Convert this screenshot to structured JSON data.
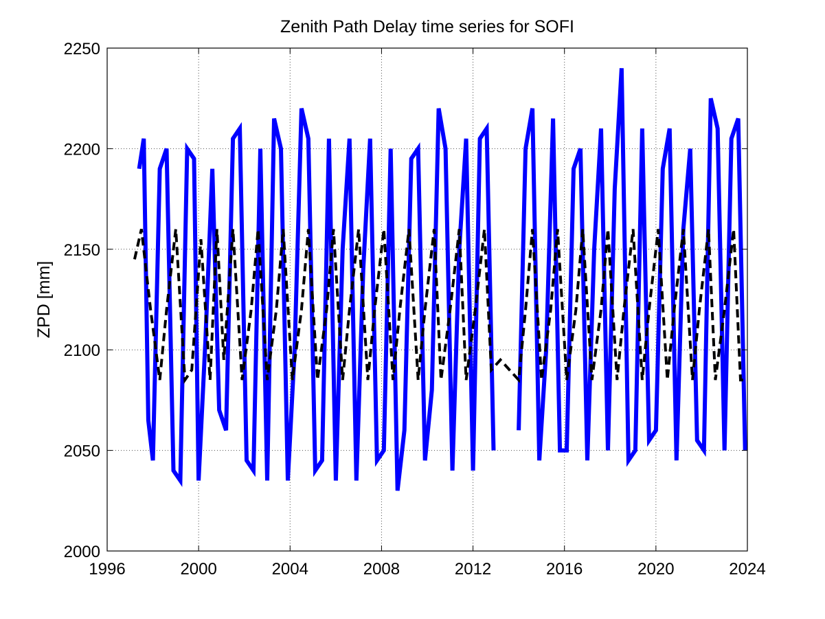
{
  "chart_data": {
    "type": "line",
    "title": "Zenith Path Delay time series for SOFI",
    "xlabel": "",
    "ylabel": "ZPD [mm]",
    "xlim": [
      1996,
      2024
    ],
    "ylim": [
      2000,
      2250
    ],
    "x_ticks": [
      "1996",
      "2000",
      "2004",
      "2008",
      "2012",
      "2016",
      "2020",
      "2024"
    ],
    "y_ticks": [
      "2000",
      "2050",
      "2100",
      "2150",
      "2200",
      "2250"
    ],
    "grid": true,
    "colors": {
      "observed": "#0000ff",
      "model": "#000000"
    },
    "series": [
      {
        "style": "solid-thick",
        "color": "#0000ff",
        "segments": [
          {
            "x": [
              1997.4,
              1997.6,
              1997.8,
              1998.0,
              1998.3,
              1998.6,
              1998.9,
              1999.2,
              1999.5,
              1999.8,
              2000.0,
              2000.3,
              2000.6,
              2000.9,
              2001.2,
              2001.5,
              2001.8,
              2002.1,
              2002.4,
              2002.7,
              2003.0,
              2003.3,
              2003.6,
              2003.9,
              2004.2,
              2004.5,
              2004.8,
              2005.1,
              2005.4,
              2005.7,
              2006.0,
              2006.3,
              2006.6,
              2006.9,
              2007.2,
              2007.5,
              2007.8,
              2008.1,
              2008.4,
              2008.7,
              2009.0,
              2009.3,
              2009.6,
              2009.9,
              2010.2,
              2010.5,
              2010.8,
              2011.1,
              2011.4,
              2011.7,
              2012.0,
              2012.3,
              2012.6,
              2012.9
            ],
            "y": [
              2190,
              2205,
              2065,
              2045,
              2190,
              2200,
              2040,
              2035,
              2200,
              2195,
              2035,
              2105,
              2190,
              2070,
              2060,
              2205,
              2210,
              2045,
              2040,
              2200,
              2035,
              2215,
              2200,
              2035,
              2100,
              2220,
              2205,
              2040,
              2045,
              2205,
              2035,
              2150,
              2205,
              2035,
              2140,
              2205,
              2045,
              2050,
              2200,
              2030,
              2060,
              2195,
              2200,
              2045,
              2080,
              2220,
              2200,
              2040,
              2150,
              2205,
              2040,
              2205,
              2210,
              2050
            ]
          },
          {
            "x": [
              2014.0,
              2014.3,
              2014.6,
              2014.9,
              2015.2,
              2015.5,
              2015.8,
              2016.1,
              2016.4,
              2016.7,
              2017.0,
              2017.3,
              2017.6,
              2017.9,
              2018.2,
              2018.5,
              2018.8,
              2019.1,
              2019.4,
              2019.7,
              2020.0,
              2020.3,
              2020.6,
              2020.9,
              2021.2,
              2021.5,
              2021.8,
              2022.1,
              2022.4,
              2022.7,
              2023.0,
              2023.3,
              2023.6,
              2023.9
            ],
            "y": [
              2060,
              2200,
              2220,
              2045,
              2100,
              2215,
              2050,
              2050,
              2190,
              2200,
              2045,
              2150,
              2210,
              2050,
              2180,
              2240,
              2045,
              2050,
              2210,
              2055,
              2060,
              2190,
              2210,
              2045,
              2160,
              2200,
              2055,
              2050,
              2225,
              2210,
              2050,
              2205,
              2215,
              2050
            ]
          }
        ]
      },
      {
        "style": "dashed",
        "color": "#000000",
        "x": [
          1997.2,
          1997.5,
          1997.9,
          1998.3,
          1998.6,
          1999.0,
          1999.4,
          1999.7,
          2000.1,
          2000.5,
          2000.8,
          2001.1,
          2001.5,
          2001.9,
          2002.3,
          2002.6,
          2003.0,
          2003.4,
          2003.7,
          2004.1,
          2004.5,
          2004.8,
          2005.2,
          2005.6,
          2005.9,
          2006.3,
          2006.6,
          2007.0,
          2007.4,
          2007.7,
          2008.1,
          2008.5,
          2008.8,
          2009.2,
          2009.6,
          2009.9,
          2010.3,
          2010.6,
          2011.0,
          2011.4,
          2011.7,
          2012.1,
          2012.5,
          2012.8,
          2013.2,
          2013.6,
          2014.0,
          2014.3,
          2014.6,
          2015.0,
          2015.4,
          2015.7,
          2016.1,
          2016.5,
          2016.8,
          2017.2,
          2017.6,
          2017.9,
          2018.3,
          2018.6,
          2019.0,
          2019.4,
          2019.7,
          2020.1,
          2020.5,
          2020.8,
          2021.2,
          2021.6,
          2021.9,
          2022.3,
          2022.6,
          2023.0,
          2023.4,
          2023.7,
          2024.0
        ],
        "y": [
          2145,
          2160,
          2120,
          2085,
          2120,
          2160,
          2085,
          2090,
          2155,
          2085,
          2160,
          2095,
          2160,
          2085,
          2120,
          2160,
          2085,
          2120,
          2160,
          2085,
          2120,
          2160,
          2085,
          2120,
          2160,
          2085,
          2120,
          2160,
          2085,
          2120,
          2160,
          2085,
          2120,
          2160,
          2085,
          2120,
          2160,
          2085,
          2120,
          2160,
          2085,
          2120,
          2160,
          2090,
          2095,
          2090,
          2085,
          2120,
          2160,
          2085,
          2120,
          2160,
          2085,
          2120,
          2160,
          2085,
          2120,
          2160,
          2085,
          2120,
          2160,
          2085,
          2120,
          2160,
          2085,
          2120,
          2160,
          2085,
          2120,
          2160,
          2085,
          2120,
          2160,
          2085,
          2085
        ]
      }
    ]
  }
}
